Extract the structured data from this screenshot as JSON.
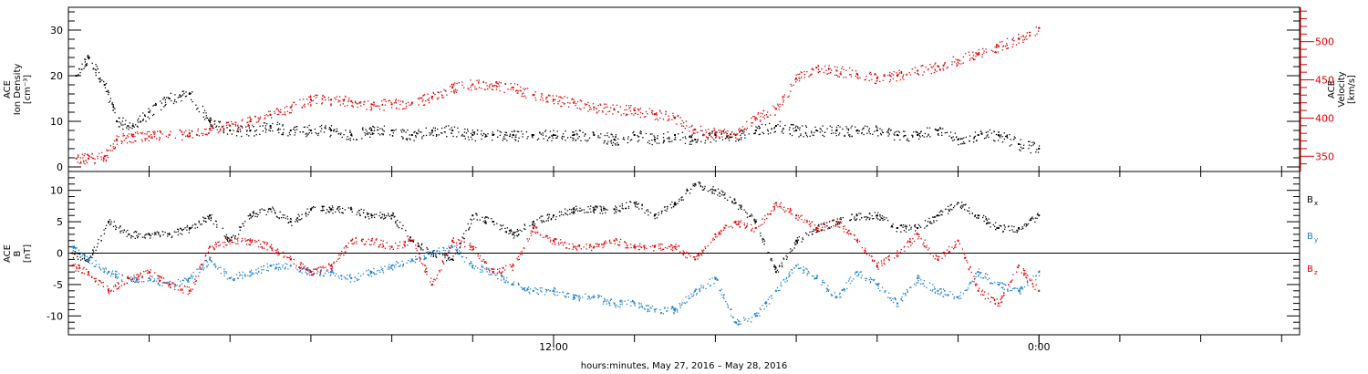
{
  "chart_data": [
    {
      "type": "scatter",
      "panel": "ion-density-velocity",
      "ylabel_left": [
        "ACE",
        "Ion Density",
        "[cm⁻³]"
      ],
      "ylabel_right": [
        "ACE",
        "Velocity",
        "[km/s]"
      ],
      "ylim_left": [
        -1,
        35
      ],
      "yticks_left": [
        0,
        10,
        20,
        30
      ],
      "ylim_right": [
        330,
        545
      ],
      "yticks_right": [
        350,
        400,
        450,
        500
      ],
      "series": [
        {
          "axis": "left",
          "color": "#000000",
          "x_hours": [
            0.2,
            0.5,
            0.9,
            1.2,
            1.6,
            2.0,
            2.5,
            3.0,
            3.5,
            4.0,
            4.5,
            5.0,
            5.5,
            6.0,
            6.5,
            7.0,
            7.5,
            8.0,
            8.5,
            9.0,
            9.5,
            10.0,
            10.5,
            11.0,
            11.5,
            12.0,
            12.5,
            13.0,
            13.5,
            14.0,
            14.5,
            15.0,
            15.5,
            16.0,
            16.5,
            17.0,
            17.5,
            18.0,
            18.5,
            19.0,
            19.5,
            20.0,
            20.5,
            21.0,
            21.5,
            22.0,
            22.5,
            23.0,
            23.5,
            24.0
          ],
          "y": [
            20,
            24,
            18,
            10,
            9,
            12,
            15,
            16,
            10,
            8,
            8,
            9,
            8,
            8,
            8,
            7,
            8,
            8,
            7,
            8,
            8,
            7,
            7,
            7,
            7,
            7,
            7,
            7,
            6,
            7,
            6,
            7,
            6,
            7,
            7,
            8,
            9,
            8,
            8,
            8,
            8,
            8,
            7,
            7,
            8,
            6,
            7,
            7,
            5,
            4
          ]
        },
        {
          "axis": "right",
          "color": "#e00000",
          "x_hours": [
            0.2,
            0.5,
            0.9,
            1.2,
            1.6,
            2.0,
            2.5,
            3.0,
            3.5,
            4.0,
            4.5,
            5.0,
            5.5,
            6.0,
            6.5,
            7.0,
            7.5,
            8.0,
            8.5,
            9.0,
            9.5,
            10.0,
            10.5,
            11.0,
            11.5,
            12.0,
            12.5,
            13.0,
            13.5,
            14.0,
            14.5,
            15.0,
            15.5,
            16.0,
            16.5,
            17.0,
            17.5,
            18.0,
            18.5,
            19.0,
            19.5,
            20.0,
            20.5,
            21.0,
            21.5,
            22.0,
            22.5,
            23.0,
            23.5,
            24.0
          ],
          "y": [
            347,
            347,
            350,
            372,
            376,
            376,
            378,
            380,
            386,
            390,
            396,
            404,
            414,
            424,
            424,
            422,
            418,
            418,
            420,
            428,
            440,
            444,
            442,
            440,
            430,
            424,
            420,
            414,
            411,
            410,
            405,
            400,
            385,
            380,
            378,
            400,
            412,
            452,
            466,
            462,
            458,
            452,
            456,
            462,
            468,
            476,
            484,
            494,
            504,
            518
          ]
        }
      ]
    },
    {
      "type": "scatter",
      "panel": "magnetic-field",
      "ylabel": [
        "ACE",
        "B",
        "[nT]"
      ],
      "ylim": [
        -13,
        13
      ],
      "yticks": [
        -10,
        -5,
        0,
        5,
        10
      ],
      "zero_line": true,
      "legend": [
        {
          "label": "B",
          "sub": "x",
          "color": "#000000"
        },
        {
          "label": "B",
          "sub": "y",
          "color": "#1a7fd1"
        },
        {
          "label": "B",
          "sub": "z",
          "color": "#e00000"
        }
      ],
      "series": [
        {
          "name": "Bx",
          "color": "#000000",
          "x_hours": [
            0.1,
            0.5,
            1.0,
            1.5,
            2.0,
            2.5,
            3.0,
            3.5,
            4.0,
            4.5,
            5.0,
            5.5,
            6.0,
            6.5,
            7.0,
            7.5,
            8.0,
            8.5,
            9.0,
            9.5,
            10.0,
            10.5,
            11.0,
            11.5,
            12.0,
            12.5,
            13.0,
            13.5,
            14.0,
            14.5,
            15.0,
            15.5,
            16.0,
            16.5,
            17.0,
            17.5,
            18.0,
            18.5,
            19.0,
            19.5,
            20.0,
            20.5,
            21.0,
            21.5,
            22.0,
            22.5,
            23.0,
            23.5,
            24.0
          ],
          "y": [
            0,
            -1,
            5,
            3,
            3,
            3,
            4,
            6,
            2,
            6,
            7,
            5,
            7,
            7,
            7,
            6,
            6,
            2,
            0,
            -1,
            6,
            5,
            3,
            5,
            6,
            7,
            7,
            7,
            8,
            6,
            8,
            11,
            10,
            8,
            5,
            -3,
            2,
            4,
            5,
            6,
            6,
            4,
            4,
            6,
            8,
            6,
            4,
            4,
            6
          ]
        },
        {
          "name": "By",
          "color": "#1a7fd1",
          "x_hours": [
            0.1,
            0.5,
            1.0,
            1.5,
            2.0,
            2.5,
            3.0,
            3.5,
            4.0,
            4.5,
            5.0,
            5.5,
            6.0,
            6.5,
            7.0,
            7.5,
            8.0,
            8.5,
            9.0,
            9.5,
            10.0,
            10.5,
            11.0,
            11.5,
            12.0,
            12.5,
            13.0,
            13.5,
            14.0,
            14.5,
            15.0,
            15.5,
            16.0,
            16.5,
            17.0,
            17.5,
            18.0,
            18.5,
            19.0,
            19.5,
            20.0,
            20.5,
            21.0,
            21.5,
            22.0,
            22.5,
            23.0,
            23.5,
            24.0
          ],
          "y": [
            1,
            -1,
            -3,
            -4,
            -4,
            -5,
            -4,
            -1,
            -4,
            -3,
            -2,
            -2,
            -3,
            -3,
            -4,
            -3,
            -2,
            -1,
            0,
            1,
            -2,
            -3,
            -5,
            -6,
            -6,
            -7,
            -7,
            -8,
            -8,
            -9,
            -9,
            -6,
            -4,
            -11,
            -10,
            -6,
            -2,
            -4,
            -7,
            -3,
            -5,
            -8,
            -4,
            -6,
            -7,
            -3,
            -5,
            -6,
            -3
          ]
        },
        {
          "name": "Bz",
          "color": "#e00000",
          "x_hours": [
            0.1,
            0.5,
            1.0,
            1.5,
            2.0,
            2.5,
            3.0,
            3.5,
            4.0,
            4.5,
            5.0,
            5.5,
            6.0,
            6.5,
            7.0,
            7.5,
            8.0,
            8.5,
            9.0,
            9.5,
            10.0,
            10.5,
            11.0,
            11.5,
            12.0,
            12.5,
            13.0,
            13.5,
            14.0,
            14.5,
            15.0,
            15.5,
            16.0,
            16.5,
            17.0,
            17.5,
            18.0,
            18.5,
            19.0,
            19.5,
            20.0,
            20.5,
            21.0,
            21.5,
            22.0,
            22.5,
            23.0,
            23.5,
            24.0
          ],
          "y": [
            -2,
            -3,
            -6,
            -4,
            -3,
            -5,
            -6,
            1,
            2,
            2,
            1,
            -1,
            -3,
            -2,
            2,
            2,
            1,
            2,
            -5,
            2,
            1,
            -3,
            -2,
            4,
            2,
            1,
            1,
            2,
            1,
            1,
            1,
            -1,
            3,
            5,
            4,
            8,
            6,
            4,
            5,
            2,
            -2,
            0,
            3,
            -1,
            2,
            -6,
            -8,
            -2,
            -6
          ]
        }
      ]
    }
  ],
  "x_axis": {
    "tick_labels": [
      {
        "hour": 12,
        "label": "12:00"
      },
      {
        "hour": 24,
        "label": "0:00"
      }
    ],
    "title": "hours:minutes, May 27, 2016 – May 28, 2016"
  }
}
